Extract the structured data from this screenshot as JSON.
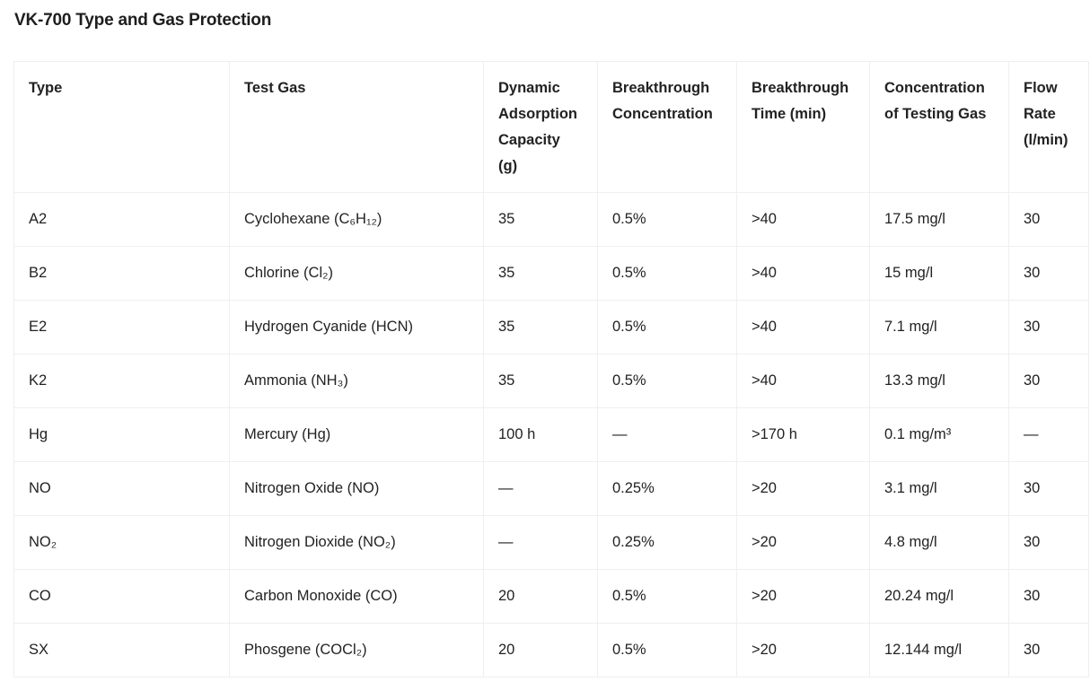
{
  "title": "VK-700 Type and Gas Protection",
  "headers": [
    "Type",
    "Test Gas",
    "Dynamic Adsorption Capacity (g)",
    "Breakthrough Concentration",
    "Breakthrough Time (min)",
    "Concentration of Testing Gas",
    "Flow Rate (l/min)"
  ],
  "rows": [
    [
      "A2",
      "Cyclohexane (C₆H₁₂)",
      "35",
      "0.5%",
      ">40",
      "17.5 mg/l",
      "30"
    ],
    [
      "B2",
      "Chlorine (Cl₂)",
      "35",
      "0.5%",
      ">40",
      "15 mg/l",
      "30"
    ],
    [
      "E2",
      "Hydrogen Cyanide (HCN)",
      "35",
      "0.5%",
      ">40",
      "7.1 mg/l",
      "30"
    ],
    [
      "K2",
      "Ammonia (NH₃)",
      "35",
      "0.5%",
      ">40",
      "13.3 mg/l",
      "30"
    ],
    [
      "Hg",
      "Mercury (Hg)",
      "100 h",
      "—",
      ">170 h",
      "0.1 mg/m³",
      "—"
    ],
    [
      "NO",
      "Nitrogen Oxide (NO)",
      "—",
      "0.25%",
      ">20",
      "3.1 mg/l",
      "30"
    ],
    [
      "NO₂",
      "Nitrogen Dioxide (NO₂)",
      "—",
      "0.25%",
      ">20",
      "4.8 mg/l",
      "30"
    ],
    [
      "CO",
      "Carbon Monoxide (CO)",
      "20",
      "0.5%",
      ">20",
      "20.24 mg/l",
      "30"
    ],
    [
      "SX",
      "Phosgene (COCl₂)",
      "20",
      "0.5%",
      ">20",
      "12.144 mg/l",
      "30"
    ]
  ]
}
